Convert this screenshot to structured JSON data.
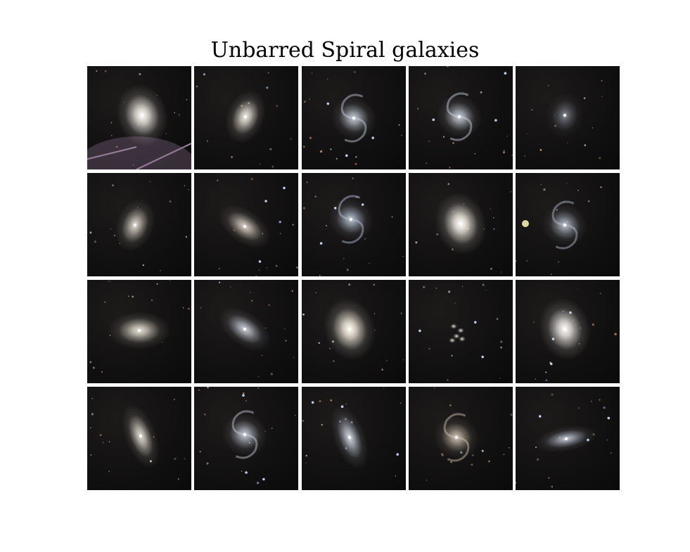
{
  "title": "Unbarred Spiral galaxies",
  "grid": {
    "rows": 4,
    "columns": 5,
    "tiles": [
      {
        "row": 1,
        "col": 1,
        "subject": "spiral galaxy",
        "shape": "oval-bright",
        "feature": "diffraction-spikes",
        "tint": "#e9e4dc"
      },
      {
        "row": 1,
        "col": 2,
        "subject": "spiral galaxy",
        "shape": "oval",
        "feature": "",
        "tint": "#e8e2d6"
      },
      {
        "row": 1,
        "col": 3,
        "subject": "spiral galaxy",
        "shape": "spiral-arms",
        "feature": "field-stars",
        "tint": "#c9d2e0"
      },
      {
        "row": 1,
        "col": 4,
        "subject": "spiral galaxy",
        "shape": "spiral-arms",
        "feature": "field-stars",
        "tint": "#cfd6e2"
      },
      {
        "row": 1,
        "col": 5,
        "subject": "spiral galaxy",
        "shape": "faint",
        "feature": "",
        "tint": "#9aa2ae"
      },
      {
        "row": 2,
        "col": 1,
        "subject": "spiral galaxy",
        "shape": "oval",
        "feature": "",
        "tint": "#cfc7bc"
      },
      {
        "row": 2,
        "col": 2,
        "subject": "spiral galaxy",
        "shape": "tilted-oval",
        "feature": "field-stars",
        "tint": "#d9cfc3"
      },
      {
        "row": 2,
        "col": 3,
        "subject": "spiral galaxy",
        "shape": "spiral-arms",
        "feature": "field-stars",
        "tint": "#b8c4d8"
      },
      {
        "row": 2,
        "col": 4,
        "subject": "spiral galaxy",
        "shape": "oval-bright",
        "feature": "",
        "tint": "#efe9df"
      },
      {
        "row": 2,
        "col": 5,
        "subject": "spiral galaxy",
        "shape": "spiral-arms",
        "feature": "bright-star",
        "tint": "#b6bfcc"
      },
      {
        "row": 3,
        "col": 1,
        "subject": "spiral galaxy",
        "shape": "wide-oval",
        "feature": "",
        "tint": "#e4ddcf"
      },
      {
        "row": 3,
        "col": 2,
        "subject": "spiral galaxy",
        "shape": "tilted-oval",
        "feature": "",
        "tint": "#c6cbd8"
      },
      {
        "row": 3,
        "col": 3,
        "subject": "spiral galaxy",
        "shape": "oval-bright",
        "feature": "",
        "tint": "#ece4d6"
      },
      {
        "row": 3,
        "col": 4,
        "subject": "spiral galaxy",
        "shape": "faint-cluster",
        "feature": "field-stars",
        "tint": "#b8b2a6"
      },
      {
        "row": 3,
        "col": 5,
        "subject": "spiral galaxy",
        "shape": "oval-bright",
        "feature": "field-stars",
        "tint": "#e6e2dc"
      },
      {
        "row": 4,
        "col": 1,
        "subject": "spiral galaxy",
        "shape": "tall-oval",
        "feature": "",
        "tint": "#dcd6cc"
      },
      {
        "row": 4,
        "col": 2,
        "subject": "spiral galaxy",
        "shape": "spiral-arms",
        "feature": "field-stars",
        "tint": "#c8cfdb"
      },
      {
        "row": 4,
        "col": 3,
        "subject": "spiral galaxy",
        "shape": "tall-oval",
        "feature": "field-stars",
        "tint": "#c4ccd8"
      },
      {
        "row": 4,
        "col": 4,
        "subject": "spiral galaxy",
        "shape": "spiral-arms",
        "feature": "",
        "tint": "#d4c6b3"
      },
      {
        "row": 4,
        "col": 5,
        "subject": "spiral galaxy",
        "shape": "flat-oval",
        "feature": "field-stars",
        "tint": "#c2cad8"
      }
    ]
  }
}
